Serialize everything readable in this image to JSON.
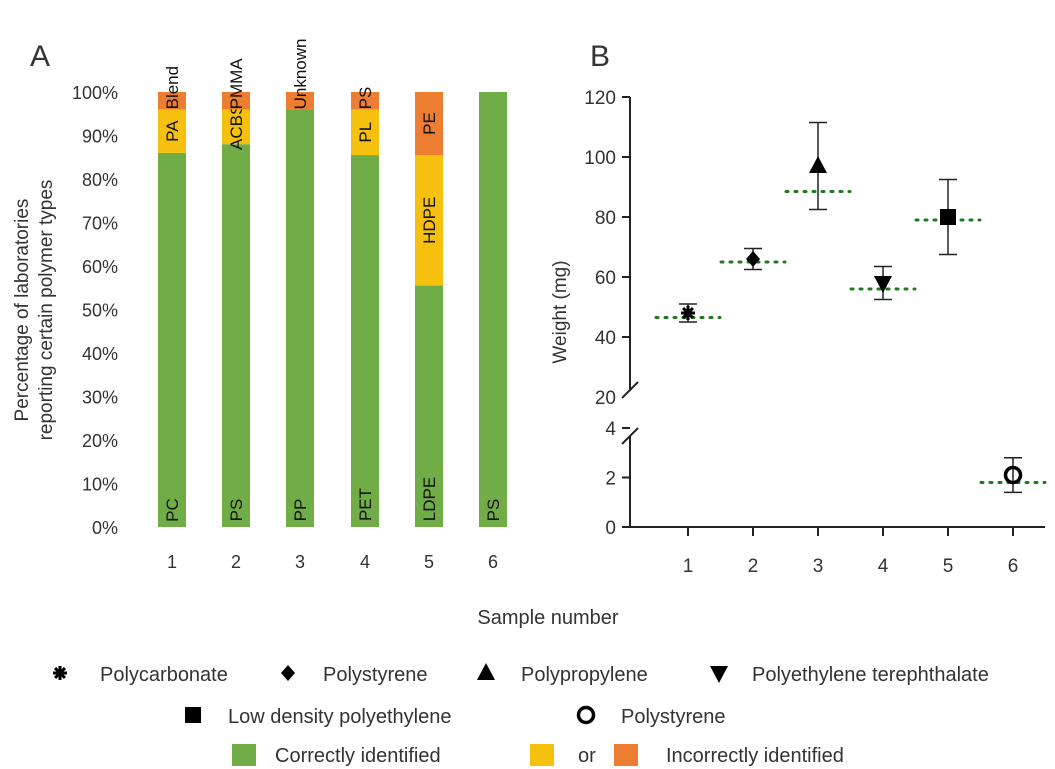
{
  "panel_letters": [
    "A",
    "B"
  ],
  "shared_xlabel": "Sample number",
  "legend": {
    "markers": [
      {
        "symbol": "asterisk",
        "label": "Polycarbonate"
      },
      {
        "symbol": "diamond",
        "label": "Polystyrene"
      },
      {
        "symbol": "triangle-up",
        "label": "Polypropylene"
      },
      {
        "symbol": "triangle-down",
        "label": "Polyethylene terephthalate"
      },
      {
        "symbol": "square",
        "label": "Low density polyethylene"
      },
      {
        "symbol": "circle-open",
        "label": "Polystyrene"
      }
    ],
    "correct_label": "Correctly identified",
    "or_label": "or",
    "incorrect_label": "Incorrectly identified"
  },
  "colors": {
    "correct": "#70ad47",
    "or": "#f5c10e",
    "incorrect": "#ed7d31",
    "reference_line": "#1f7a1f",
    "marker": "#000000"
  },
  "chart_data": [
    {
      "panel": "A",
      "type": "bar",
      "stacked": true,
      "ylabel": "Percentage of laboratories reporting certain polymer types",
      "ylim": [
        0,
        100
      ],
      "yticks": [
        "0%",
        "10%",
        "20%",
        "30%",
        "40%",
        "50%",
        "60%",
        "70%",
        "80%",
        "90%",
        "100%"
      ],
      "categories": [
        "1",
        "2",
        "3",
        "4",
        "5",
        "6"
      ],
      "series": [
        {
          "name": "Correctly identified",
          "color": "#70ad47",
          "values": [
            86,
            88,
            96,
            85.5,
            55.5,
            100
          ],
          "labels": [
            "PC",
            "PS",
            "PP",
            "PET",
            "LDPE",
            "PS"
          ]
        },
        {
          "color": "#f5c10e",
          "values": [
            10,
            8,
            0,
            10.5,
            30,
            0
          ],
          "labels": [
            "PA",
            "ACBS",
            "",
            "PL",
            "HDPE",
            ""
          ]
        },
        {
          "color": "#ed7d31",
          "values": [
            4,
            4,
            4,
            4,
            14.5,
            0
          ],
          "labels": [
            "",
            "",
            "",
            "",
            "PE",
            ""
          ]
        }
      ],
      "top_labels": [
        "Blend",
        "PMMA",
        "Unknown",
        "PS",
        "",
        ""
      ]
    },
    {
      "panel": "B",
      "type": "scatter",
      "ylabel": "Weight (mg)",
      "xticks": [
        "1",
        "2",
        "3",
        "4",
        "5",
        "6"
      ],
      "yticks_upper": [
        "20",
        "40",
        "60",
        "80",
        "100",
        "120"
      ],
      "yticks_lower": [
        "0",
        "2",
        "4"
      ],
      "axis_break": {
        "lower_range": [
          0,
          4
        ],
        "upper_range": [
          20,
          120
        ]
      },
      "points": [
        {
          "x": 1,
          "y": 48,
          "err_low": 45,
          "err_high": 51,
          "marker": "asterisk",
          "reference": 46.5
        },
        {
          "x": 2,
          "y": 66,
          "err_low": 62.5,
          "err_high": 69.5,
          "marker": "diamond",
          "reference": 65
        },
        {
          "x": 3,
          "y": 97,
          "err_low": 82.5,
          "err_high": 111.5,
          "marker": "triangle-up",
          "reference": 88.5
        },
        {
          "x": 4,
          "y": 58,
          "err_low": 52.5,
          "err_high": 63.5,
          "marker": "triangle-down",
          "reference": 56
        },
        {
          "x": 5,
          "y": 80,
          "err_low": 67.5,
          "err_high": 92.5,
          "marker": "square",
          "reference": 79
        },
        {
          "x": 6,
          "y": 2.1,
          "err_low": 1.4,
          "err_high": 2.8,
          "marker": "circle-open",
          "reference": 1.8
        }
      ]
    }
  ]
}
